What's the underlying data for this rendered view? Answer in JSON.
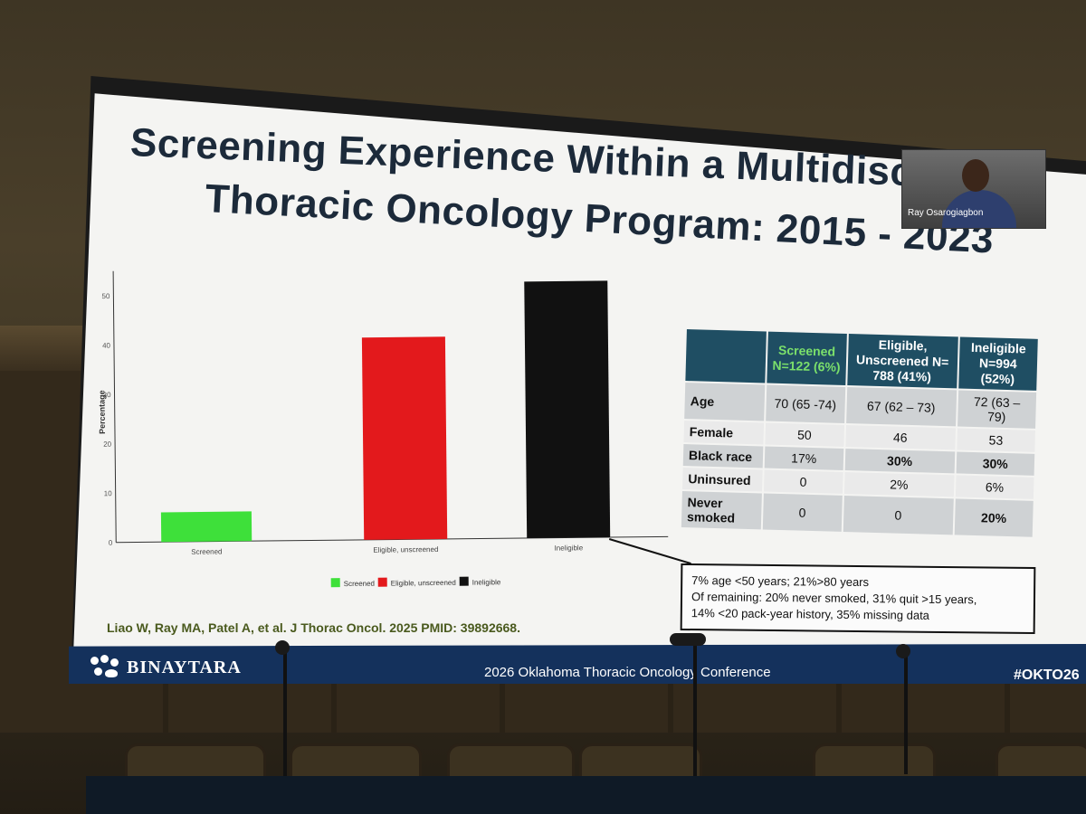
{
  "slide": {
    "title_line1": "Screening Experience Within a Multidiscip",
    "title_line2": "Thoracic Oncology Program: 2015 - 2023",
    "speaker_name": "Ray Osarogiagbon",
    "citation": "Liao W, Ray MA, Patel A, et al. J Thorac Oncol. 2025 PMID: 39892668.",
    "callout_lines": [
      "7% age <50 years; 21%>80 years",
      "Of remaining: 20% never smoked, 31% quit >15 years,",
      "14% <20 pack-year history, 35% missing data"
    ]
  },
  "footer": {
    "logo_text": "BINAYTARA",
    "conference": "2026 Oklahoma Thoracic Oncology Conference",
    "hashtag": "#OKTO26"
  },
  "table": {
    "headers": [
      "",
      "Screened N=122 (6%)",
      "Eligible, Unscreened N= 788 (41%)",
      "Ineligible N=994 (52%)"
    ],
    "rows": [
      {
        "label": "Age",
        "values": [
          "70 (65 -74)",
          "67 (62 – 73)",
          "72 (63 – 79)"
        ],
        "bold": [
          false,
          false,
          false
        ]
      },
      {
        "label": "Female",
        "values": [
          "50",
          "46",
          "53"
        ],
        "bold": [
          false,
          false,
          false
        ]
      },
      {
        "label": "Black race",
        "values": [
          "17%",
          "30%",
          "30%"
        ],
        "bold": [
          false,
          true,
          true
        ]
      },
      {
        "label": "Uninsured",
        "values": [
          "0",
          "2%",
          "6%"
        ],
        "bold": [
          false,
          false,
          false
        ]
      },
      {
        "label": "Never smoked",
        "values": [
          "0",
          "0",
          "20%"
        ],
        "bold": [
          false,
          false,
          true
        ]
      }
    ]
  },
  "chart_data": {
    "type": "bar",
    "title": "",
    "xlabel": "",
    "ylabel": "Percentage",
    "categories": [
      "Screened",
      "Eligible, unscreened",
      "Ineligible"
    ],
    "values": [
      6,
      41,
      52
    ],
    "colors": [
      "#3ee03a",
      "#e3191c",
      "#111111"
    ],
    "ylim": [
      0,
      55
    ],
    "yticks": [
      0,
      10,
      20,
      30,
      40,
      50
    ],
    "legend": [
      "Screened",
      "Eligible, unscreened",
      "Ineligible"
    ],
    "legend_position": "bottom"
  }
}
